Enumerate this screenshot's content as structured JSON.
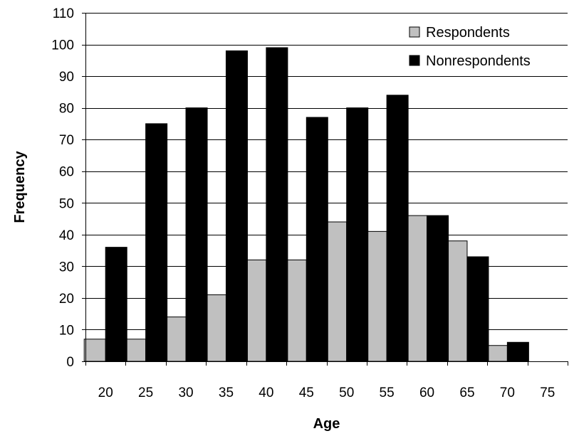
{
  "chart_data": {
    "type": "bar",
    "title": "",
    "xlabel": "Age",
    "ylabel": "Frequency",
    "categories": [
      "20",
      "25",
      "30",
      "35",
      "40",
      "45",
      "50",
      "55",
      "60",
      "65",
      "70",
      "75"
    ],
    "series": [
      {
        "name": "Respondents",
        "color": "#c0c0c0",
        "values": [
          7,
          7,
          14,
          21,
          32,
          32,
          44,
          41,
          46,
          38,
          5,
          0
        ]
      },
      {
        "name": "Nonrespondents",
        "color": "#000000",
        "values": [
          36,
          75,
          80,
          98,
          99,
          77,
          80,
          84,
          46,
          33,
          6,
          0
        ]
      }
    ],
    "ylim": [
      0,
      110
    ],
    "yticks": [
      0,
      10,
      20,
      30,
      40,
      50,
      60,
      70,
      80,
      90,
      100,
      110
    ],
    "grid": true,
    "legend_position": "top-right"
  }
}
